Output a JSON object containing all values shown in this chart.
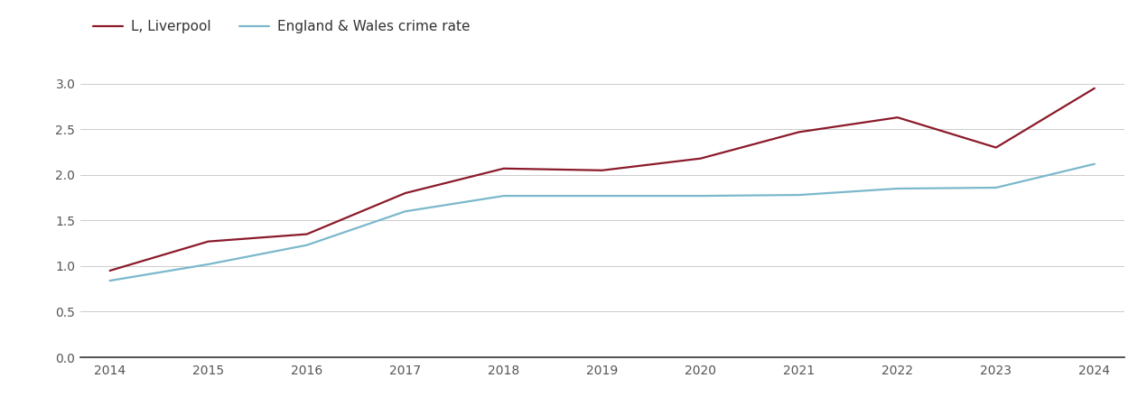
{
  "years": [
    2014,
    2015,
    2016,
    2017,
    2018,
    2019,
    2020,
    2021,
    2022,
    2023,
    2024
  ],
  "liverpool": [
    0.95,
    1.27,
    1.35,
    1.8,
    2.07,
    2.05,
    2.18,
    2.47,
    2.63,
    2.3,
    2.95
  ],
  "england_wales": [
    0.84,
    1.02,
    1.23,
    1.6,
    1.77,
    1.77,
    1.77,
    1.78,
    1.85,
    1.86,
    2.12
  ],
  "liverpool_color": "#8B1A2A",
  "england_wales_color": "#7BB8CC",
  "liverpool_label": "L, Liverpool",
  "england_wales_label": "England & Wales crime rate",
  "ylim": [
    0.0,
    3.25
  ],
  "yticks": [
    0.0,
    0.5,
    1.0,
    1.5,
    2.0,
    2.5,
    3.0
  ],
  "background_color": "#ffffff",
  "grid_color": "#cccccc",
  "linewidth": 1.6,
  "legend_fontsize": 11,
  "tick_fontsize": 10
}
